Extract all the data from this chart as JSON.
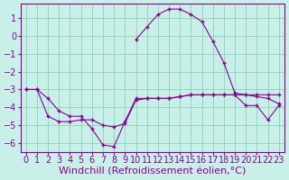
{
  "xlabel": "Windchill (Refroidissement éolien,°C)",
  "background_color": "#c8f0e8",
  "grid_color": "#80c8b4",
  "line_color": "#8b008b",
  "x_ticks": [
    0,
    1,
    2,
    3,
    4,
    5,
    6,
    7,
    8,
    9,
    10,
    11,
    12,
    13,
    14,
    15,
    16,
    17,
    18,
    19,
    20,
    21,
    22,
    23
  ],
  "ylim": [
    -6.5,
    1.8
  ],
  "xlim": [
    -0.5,
    23.5
  ],
  "yticks": [
    1,
    0,
    -1,
    -2,
    -3,
    -4,
    -5,
    -6
  ],
  "line1_x": [
    0,
    1,
    2,
    3,
    4,
    5,
    6,
    7,
    8,
    9,
    10,
    11,
    12,
    13,
    14,
    15,
    16,
    17,
    18,
    19,
    20,
    21,
    22,
    23
  ],
  "line1_y": [
    -3.0,
    -3.0,
    -3.5,
    -4.2,
    -4.5,
    -4.5,
    -5.2,
    -6.1,
    -6.2,
    -4.8,
    -3.5,
    -3.5,
    -3.5,
    -3.5,
    -3.4,
    -3.3,
    -3.3,
    -3.3,
    -3.3,
    -3.3,
    -3.3,
    -3.3,
    -3.3,
    -3.3
  ],
  "line2_x": [
    0,
    1,
    2,
    3,
    4,
    5,
    6,
    7,
    8,
    9,
    10,
    11,
    12,
    13,
    14,
    15,
    16,
    17,
    18,
    19,
    20,
    21,
    22,
    23
  ],
  "line2_y": [
    -3.0,
    -3.0,
    -4.5,
    -4.8,
    -4.8,
    -4.7,
    -4.7,
    -5.0,
    -5.1,
    -4.9,
    -3.6,
    -3.5,
    -3.5,
    -3.5,
    -3.4,
    -3.3,
    -3.3,
    -3.3,
    -3.3,
    -3.3,
    -3.9,
    -3.9,
    -4.7,
    -3.9
  ],
  "line3_x": [
    10,
    11,
    12,
    13,
    14,
    15,
    16,
    17,
    18,
    19,
    20,
    21,
    22,
    23
  ],
  "line3_y": [
    -0.2,
    0.5,
    1.2,
    1.5,
    1.5,
    1.2,
    0.8,
    -0.3,
    -1.5,
    -3.2,
    -3.3,
    -3.4,
    -3.5,
    -3.8
  ],
  "xlabel_fontsize": 8,
  "tick_fontsize": 7
}
